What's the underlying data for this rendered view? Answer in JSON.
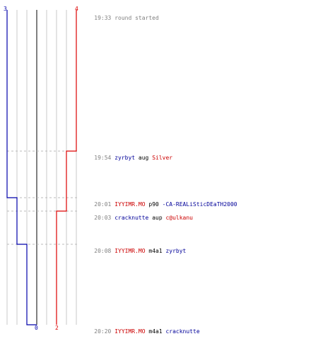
{
  "colors": {
    "blue_team": "#0000aa",
    "red_team": "#dd0000",
    "grid": "#c8c8c8",
    "center": "#808080",
    "time": "#808080"
  },
  "score_labels": {
    "blue_start": "3",
    "red_start": "4",
    "blue_end": "0",
    "red_end": "2"
  },
  "events": [
    {
      "time": "19:33",
      "text": "round started"
    },
    {
      "time": "19:54",
      "actor": "zyrbyt",
      "verb": "aug",
      "target": "Silver"
    },
    {
      "time": "20:01",
      "actor": "IYYIMR.MO",
      "verb": "p90",
      "target": "-CA-REALiSticDEaTH2000"
    },
    {
      "time": "20:03",
      "actor": "cracknutte",
      "verb": "aup",
      "target": "c@ulkanu"
    },
    {
      "time": "20:08",
      "actor": "IYYIMR.MO",
      "verb": "m4a1",
      "target": "zyrbyt"
    },
    {
      "time": "20:20",
      "actor": "IYYIMR.MO",
      "verb": "m4a1",
      "target": "cracknutte"
    }
  ],
  "score_progression": {
    "blue": [
      3,
      3,
      2,
      2,
      1,
      0
    ],
    "red": [
      4,
      3,
      3,
      2,
      2,
      2
    ]
  }
}
